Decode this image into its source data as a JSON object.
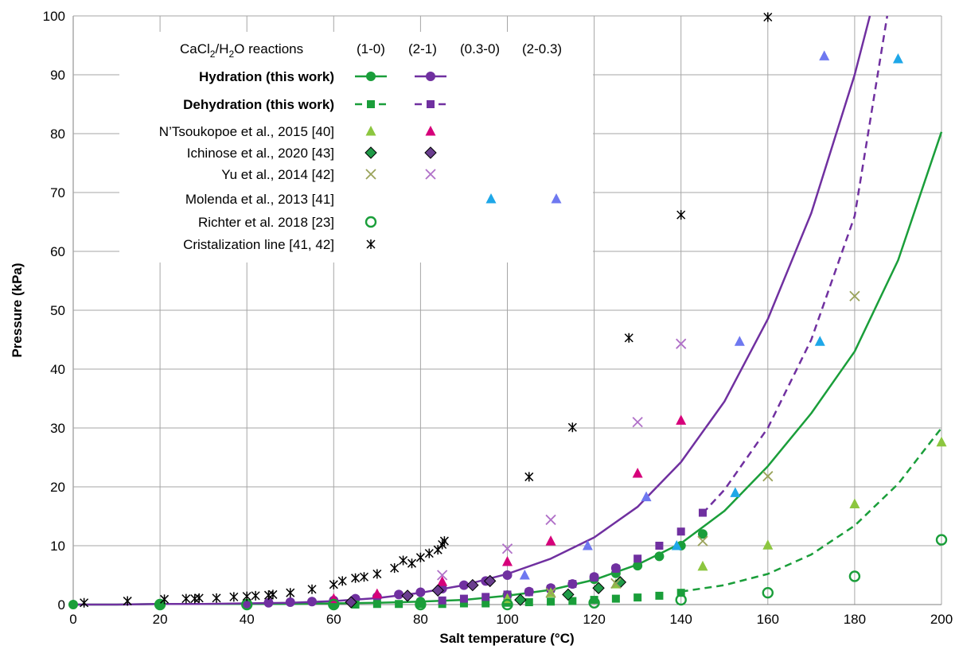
{
  "chart_data": {
    "type": "scatter",
    "xlabel": "Salt temperature (°C)",
    "ylabel": "Pressure (kPa)",
    "xlim": [
      0,
      200
    ],
    "ylim": [
      0,
      100
    ],
    "x_ticks": [
      "0",
      "20",
      "40",
      "60",
      "80",
      "100",
      "120",
      "140",
      "160",
      "180",
      "200"
    ],
    "y_ticks": [
      "0",
      "10",
      "20",
      "30",
      "40",
      "50",
      "60",
      "70",
      "80",
      "90",
      "100"
    ],
    "grid": true,
    "legend": {
      "placement": "top-left",
      "title_prefix": "CaCl",
      "title_sub1": "2",
      "title_mid": "/H",
      "title_sub2": "2",
      "title_suffix": "O reactions",
      "columns": [
        "(1-0)",
        "(2-1)",
        "(0.3-0)",
        "(2-0.3)"
      ],
      "rows": [
        {
          "label": "Hydration (this work)",
          "bold": true
        },
        {
          "label": "Dehydration (this work)",
          "bold": true
        },
        {
          "label": "N’Tsoukopoe et al., 2015 [40]",
          "bold": false
        },
        {
          "label": "Ichinose et al., 2020 [43]",
          "bold": false
        },
        {
          "label": "Yu et al., 2014 [42]",
          "bold": false
        },
        {
          "label": "Molenda et al., 2013 [41]",
          "bold": false
        },
        {
          "label": "Richter et al. 2018 [23]",
          "bold": false
        },
        {
          "label": "Cristalization line [41, 42]",
          "bold": false
        }
      ]
    },
    "colors": {
      "green": "#1a9e3a",
      "purple": "#7030a0",
      "light_green": "#8cc63f",
      "magenta": "#d6007a",
      "dark_green_marker": "#1f9a47",
      "dark_purple_marker": "#6a3d8f",
      "olive": "#9aa35a",
      "light_purple": "#b070c8",
      "cyan": "#1ea7e8",
      "periwinkle": "#6e78f0",
      "black": "#000000"
    },
    "curves": [
      {
        "id": "hyd10_full",
        "color": "green",
        "dash": false,
        "x": [
          0,
          10,
          20,
          30,
          40,
          50,
          60,
          70,
          80,
          90,
          100,
          110,
          120,
          130,
          140,
          150,
          160,
          170,
          180,
          190,
          200
        ],
        "y": [
          0.0,
          0.0,
          0.1,
          0.1,
          0.1,
          0.1,
          0.2,
          0.3,
          0.5,
          0.8,
          1.5,
          2.5,
          4.2,
          6.8,
          10.4,
          15.9,
          23.5,
          32.5,
          43.0,
          58.5,
          80.3
        ]
      },
      {
        "id": "hyd21_full",
        "color": "purple",
        "dash": false,
        "x": [
          0,
          10,
          20,
          30,
          40,
          50,
          60,
          70,
          80,
          90,
          100,
          110,
          120,
          130,
          140,
          150,
          160,
          170,
          180,
          183.5
        ],
        "y": [
          0.0,
          0.0,
          0.1,
          0.1,
          0.2,
          0.3,
          0.6,
          1.1,
          2.0,
          3.3,
          5.2,
          7.8,
          11.4,
          16.6,
          24.2,
          34.5,
          48.5,
          66.5,
          90.0,
          100
        ]
      },
      {
        "id": "deh21_dashed",
        "color": "purple",
        "dash": true,
        "x": [
          145,
          150,
          160,
          170,
          180,
          187.5
        ],
        "y": [
          15.5,
          19.5,
          30.0,
          45.0,
          66.0,
          100
        ]
      },
      {
        "id": "deh10_dashed",
        "color": "green",
        "dash": true,
        "x": [
          140,
          150,
          160,
          170,
          180,
          190,
          200
        ],
        "y": [
          2.2,
          3.3,
          5.2,
          8.5,
          13.4,
          20.5,
          30.0
        ]
      }
    ],
    "series": [
      {
        "name": "Hydration (this work)",
        "col": "(1-0)",
        "marker": "circle",
        "color": "green",
        "x": [
          0,
          20,
          40,
          60,
          80,
          100,
          110,
          120,
          125,
          130,
          135,
          140,
          145
        ],
        "y": [
          0.0,
          0.0,
          0.1,
          0.2,
          0.5,
          1.6,
          2.6,
          4.3,
          5.3,
          6.6,
          8.2,
          10.0,
          12.0
        ]
      },
      {
        "name": "Hydration (this work)",
        "col": "(2-1)",
        "marker": "circle",
        "color": "purple",
        "x": [
          40,
          45,
          50,
          55,
          60,
          65,
          70,
          75,
          80,
          85,
          90,
          95,
          100,
          105,
          110,
          115,
          120,
          125
        ],
        "y": [
          0.0,
          0.3,
          0.4,
          0.5,
          0.7,
          1.0,
          1.3,
          1.7,
          2.1,
          2.7,
          3.3,
          4.0,
          5.0,
          2.2,
          2.8,
          3.5,
          4.7,
          6.2
        ]
      },
      {
        "name": "Dehydration (this work)",
        "col": "(1-0)",
        "marker": "square",
        "color": "green",
        "x": [
          60,
          65,
          70,
          75,
          80,
          85,
          90,
          95,
          100,
          105,
          110,
          115,
          120,
          125,
          130,
          135,
          140
        ],
        "y": [
          0.0,
          0.0,
          0.1,
          0.1,
          0.1,
          0.1,
          0.2,
          0.2,
          0.3,
          0.4,
          0.5,
          0.6,
          0.8,
          1.0,
          1.2,
          1.5,
          2.0
        ]
      },
      {
        "name": "Dehydration (this work)",
        "col": "(2-1)",
        "marker": "square",
        "color": "purple",
        "x": [
          85,
          90,
          95,
          100,
          105,
          110,
          115,
          120,
          125,
          130,
          135,
          140,
          145
        ],
        "y": [
          0.7,
          1.0,
          1.3,
          1.7,
          2.1,
          2.7,
          3.5,
          4.6,
          6.1,
          7.8,
          10.0,
          12.4,
          15.6
        ]
      },
      {
        "name": "N’Tsoukopoe et al., 2015 [40]",
        "col": "(1-0)",
        "marker": "triangle",
        "color": "light_green",
        "x": [
          100,
          110,
          125,
          145,
          160,
          180,
          200
        ],
        "y": [
          1.0,
          2.0,
          3.5,
          6.5,
          10.1,
          17.1,
          27.6
        ]
      },
      {
        "name": "N’Tsoukopoe et al., 2015 [40]",
        "col": "(2-1)",
        "marker": "triangle",
        "color": "magenta",
        "x": [
          60,
          70,
          85,
          100,
          110,
          130,
          140
        ],
        "y": [
          1.0,
          1.8,
          3.9,
          7.3,
          10.8,
          22.3,
          31.3
        ]
      },
      {
        "name": "Ichinose et al., 2020 [43]",
        "col": "(1-0)",
        "marker": "diamond",
        "color": "dark_green_marker",
        "x": [
          103,
          114,
          121,
          126
        ],
        "y": [
          0.8,
          1.7,
          2.8,
          3.8
        ]
      },
      {
        "name": "Ichinose et al., 2020 [43]",
        "col": "(2-1)",
        "marker": "diamond",
        "color": "dark_purple_marker",
        "x": [
          64,
          77,
          84,
          92,
          96
        ],
        "y": [
          0.4,
          1.5,
          2.4,
          3.3,
          4.0
        ]
      },
      {
        "name": "Yu et al., 2014 [42]",
        "col": "(1-0)",
        "marker": "x",
        "color": "olive",
        "x": [
          110,
          125,
          145,
          160,
          180
        ],
        "y": [
          2.0,
          3.6,
          10.8,
          21.8,
          52.4
        ]
      },
      {
        "name": "Yu et al., 2014 [42]",
        "col": "(2-1)",
        "marker": "x",
        "color": "light_purple",
        "x": [
          85,
          100,
          110,
          130,
          140
        ],
        "y": [
          5.0,
          9.5,
          14.4,
          31.0,
          44.3
        ]
      },
      {
        "name": "Molenda et al., 2013 [41]",
        "col": "(0.3-0)",
        "marker": "triangle",
        "color": "cyan",
        "x": [
          139,
          152.5,
          172,
          190
        ],
        "y": [
          10.0,
          19.0,
          44.7,
          92.7
        ]
      },
      {
        "name": "Molenda et al., 2013 [41]",
        "col": "(2-0.3)",
        "marker": "triangle",
        "color": "periwinkle",
        "x": [
          104,
          118.5,
          132,
          153.5,
          173
        ],
        "y": [
          5.0,
          10.0,
          18.3,
          44.7,
          93.2
        ]
      },
      {
        "name": "Richter et al. 2018 [23]",
        "col": "(1-0)",
        "marker": "ring",
        "color": "green",
        "x": [
          20,
          40,
          60,
          80,
          100,
          120,
          140,
          160,
          180,
          200
        ],
        "y": [
          0.0,
          0.0,
          0.0,
          0.0,
          0.0,
          0.3,
          0.8,
          2.0,
          4.8,
          11.0
        ]
      },
      {
        "name": "Cristalization line [41, 42]",
        "col": "(1-0)",
        "marker": "star",
        "color": "black",
        "x": [
          2.5,
          12.5,
          21,
          26,
          28,
          29,
          33,
          37,
          40,
          42,
          45,
          46,
          50,
          55,
          60,
          62,
          65,
          67,
          70,
          74,
          76,
          78,
          80,
          82,
          84,
          85,
          85.5,
          105,
          115,
          128,
          140,
          160
        ],
        "y": [
          0.3,
          0.6,
          0.9,
          1.0,
          1.0,
          1.1,
          1.1,
          1.3,
          1.4,
          1.5,
          1.6,
          1.7,
          2.0,
          2.6,
          3.4,
          4.0,
          4.5,
          4.7,
          5.2,
          6.2,
          7.5,
          7.0,
          8.0,
          8.7,
          9.3,
          10.2,
          10.8,
          21.7,
          30.1,
          45.3,
          66.2,
          99.8
        ]
      }
    ]
  }
}
